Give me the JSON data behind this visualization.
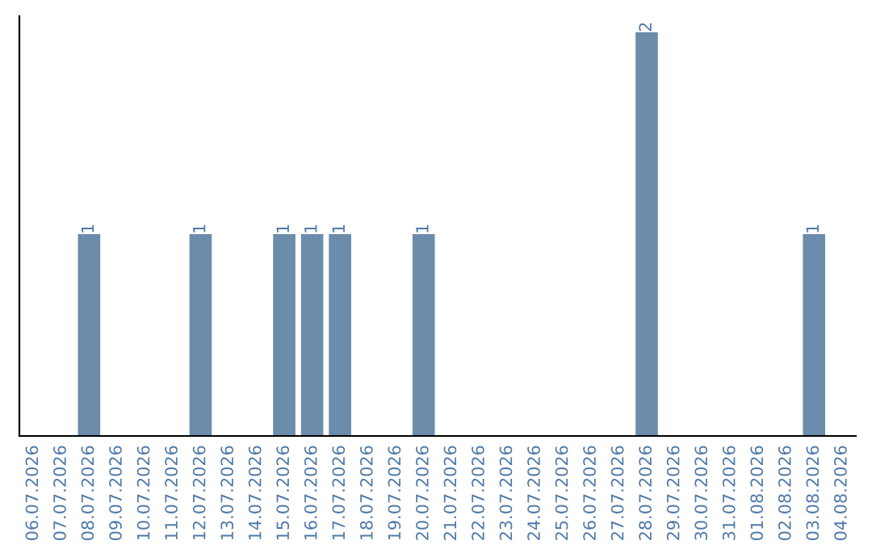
{
  "chart_data": {
    "type": "bar",
    "categories": [
      "06.07.2026",
      "07.07.2026",
      "08.07.2026",
      "09.07.2026",
      "10.07.2026",
      "11.07.2026",
      "12.07.2026",
      "13.07.2026",
      "14.07.2026",
      "15.07.2026",
      "16.07.2026",
      "17.07.2026",
      "18.07.2026",
      "19.07.2026",
      "20.07.2026",
      "21.07.2026",
      "22.07.2026",
      "23.07.2026",
      "24.07.2026",
      "25.07.2026",
      "26.07.2026",
      "27.07.2026",
      "28.07.2026",
      "29.07.2026",
      "30.07.2026",
      "31.07.2026",
      "01.08.2026",
      "02.08.2026",
      "03.08.2026",
      "04.08.2026"
    ],
    "values": [
      0,
      0,
      1,
      0,
      0,
      0,
      1,
      0,
      0,
      1,
      1,
      1,
      0,
      0,
      1,
      0,
      0,
      0,
      0,
      0,
      0,
      0,
      2,
      0,
      0,
      0,
      0,
      0,
      1,
      0
    ],
    "color": "#6b8cab",
    "value_labels": [
      null,
      null,
      "1",
      null,
      null,
      null,
      "1",
      null,
      null,
      "1",
      "1",
      "1",
      null,
      null,
      "1",
      null,
      null,
      null,
      null,
      null,
      null,
      null,
      "2",
      null,
      null,
      null,
      null,
      null,
      "1",
      null
    ],
    "grid": false,
    "legend": false
  }
}
